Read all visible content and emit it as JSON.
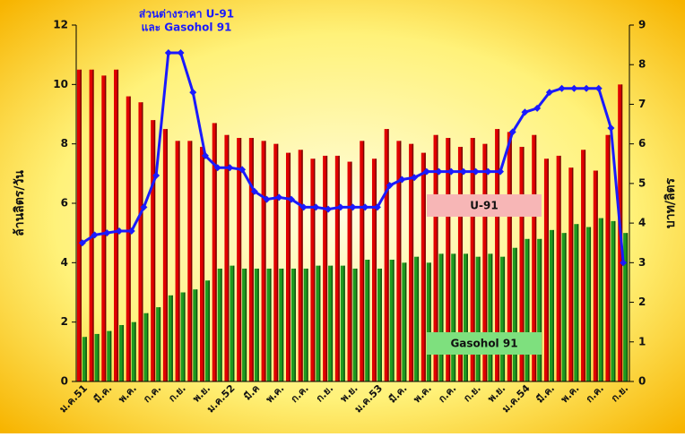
{
  "chart_data": {
    "type": "bar",
    "categories": [
      "ม.ค.51",
      null,
      "มี.ค.",
      null,
      "พ.ค.",
      null,
      "ก.ค.",
      null,
      "ก.ย.",
      null,
      "พ.ย.",
      null,
      "ม.ค.52",
      null,
      "มี.ค",
      null,
      "พ.ค.",
      null,
      "ก.ค.",
      null,
      "ก.ย.",
      null,
      "พ.ย.",
      null,
      "ม.ค.53",
      null,
      "มี.ค.",
      null,
      "พ.ค.",
      null,
      "ก.ค.",
      null,
      "ก.ย.",
      null,
      "พ.ย.",
      null,
      "ม.ค.54",
      null,
      "มี.ค.",
      null,
      "พ.ค.",
      null,
      "ก.ค.",
      null,
      "ก.ย."
    ],
    "ylabel": "ล้านลิตร/วัน",
    "y2label": "บาท/ลิตร",
    "ylim": [
      0,
      12
    ],
    "yticks": [
      0,
      2,
      4,
      6,
      8,
      10,
      12
    ],
    "y2lim": [
      0,
      9
    ],
    "y2ticks": [
      0,
      1,
      2,
      3,
      4,
      5,
      6,
      7,
      8,
      9
    ],
    "series": [
      {
        "name": "U-91",
        "type": "bar",
        "color": "#e00000",
        "legend_color": "#f7b6b6",
        "values": [
          10.5,
          10.5,
          10.3,
          10.5,
          9.6,
          9.4,
          8.8,
          8.5,
          8.1,
          8.1,
          7.9,
          8.7,
          8.3,
          8.2,
          8.2,
          8.1,
          8.0,
          7.7,
          7.8,
          7.5,
          7.6,
          7.6,
          7.4,
          8.1,
          7.5,
          8.5,
          8.1,
          8.0,
          7.7,
          8.3,
          8.2,
          7.9,
          8.2,
          8.0,
          8.5,
          8.4,
          7.9,
          8.3,
          7.5,
          7.6,
          7.2,
          7.8,
          7.1,
          8.3,
          10.0
        ]
      },
      {
        "name": "Gasohol 91",
        "type": "bar",
        "color": "#1f9a1f",
        "legend_color": "#7ee07e",
        "values": [
          1.5,
          1.6,
          1.7,
          1.9,
          2.0,
          2.3,
          2.5,
          2.9,
          3.0,
          3.1,
          3.4,
          3.8,
          3.9,
          3.8,
          3.8,
          3.8,
          3.8,
          3.8,
          3.8,
          3.9,
          3.9,
          3.9,
          3.8,
          4.1,
          3.8,
          4.1,
          4.0,
          4.2,
          4.0,
          4.3,
          4.3,
          4.3,
          4.2,
          4.3,
          4.2,
          4.5,
          4.8,
          4.8,
          5.1,
          5.0,
          5.3,
          5.2,
          5.5,
          5.4,
          5.0
        ]
      },
      {
        "name_lines": [
          "ส่วนต่างราคา U-91",
          "และ Gasohol 91"
        ],
        "type": "line",
        "axis": "y2",
        "color": "#1a1aff",
        "values": [
          3.5,
          3.7,
          3.75,
          3.8,
          3.8,
          4.4,
          5.2,
          8.3,
          8.3,
          7.3,
          5.7,
          5.4,
          5.4,
          5.35,
          4.8,
          4.6,
          4.65,
          4.6,
          4.4,
          4.4,
          4.35,
          4.4,
          4.4,
          4.4,
          4.4,
          4.95,
          5.1,
          5.15,
          5.3,
          5.3,
          5.3,
          5.3,
          5.3,
          5.3,
          5.3,
          6.3,
          6.8,
          6.9,
          7.3,
          7.4,
          7.4,
          7.4,
          7.4,
          6.4,
          3.0
        ]
      }
    ]
  }
}
